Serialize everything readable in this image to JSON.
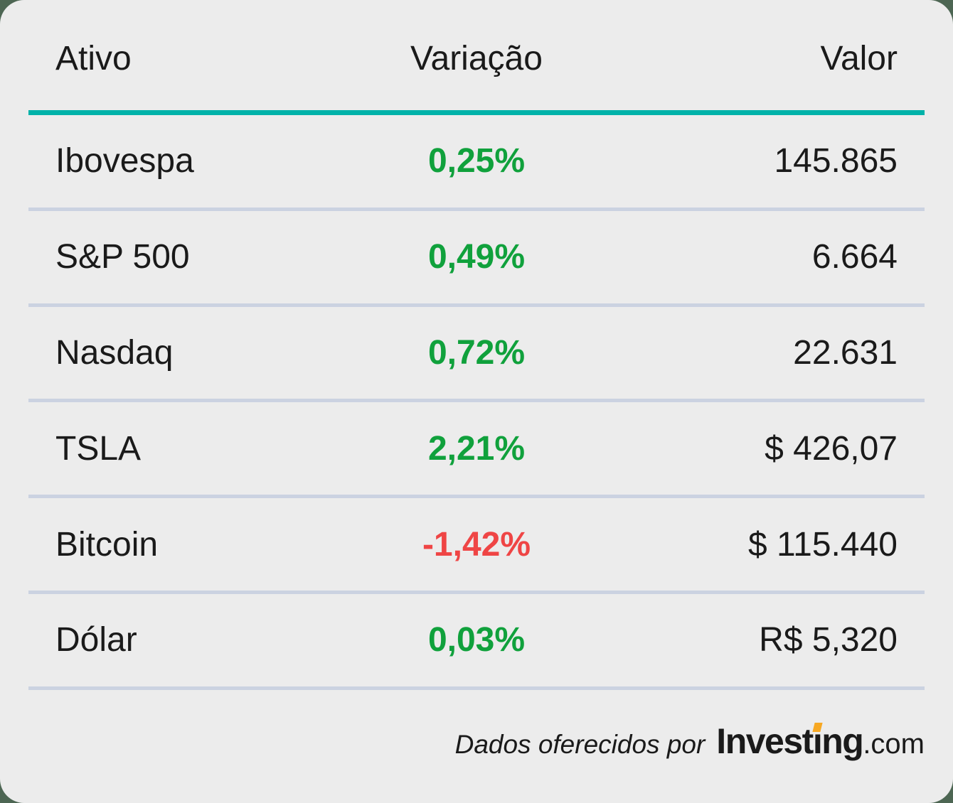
{
  "colors": {
    "page_bg": "#4d6653",
    "card_bg": "#ececec",
    "accent": "#00b2a9",
    "separator": "#cbd2e1",
    "text": "#1a1a1a",
    "positive": "#10a13c",
    "negative": "#ef4545",
    "logo_orange": "#f7a823"
  },
  "table": {
    "headers": {
      "ativo": "Ativo",
      "variacao": "Variação",
      "valor": "Valor"
    },
    "rows": [
      {
        "ativo": "Ibovespa",
        "variacao": "0,25%",
        "direction": "up",
        "valor": "145.865"
      },
      {
        "ativo": "S&P 500",
        "variacao": "0,49%",
        "direction": "up",
        "valor": "6.664"
      },
      {
        "ativo": "Nasdaq",
        "variacao": "0,72%",
        "direction": "up",
        "valor": "22.631"
      },
      {
        "ativo": "TSLA",
        "variacao": "2,21%",
        "direction": "up",
        "valor": "$ 426,07"
      },
      {
        "ativo": "Bitcoin",
        "variacao": "-1,42%",
        "direction": "down",
        "valor": "$ 115.440"
      },
      {
        "ativo": "Dólar",
        "variacao": "0,03%",
        "direction": "up",
        "valor": "R$ 5,320"
      }
    ]
  },
  "footer": {
    "attribution": "Dados oferecidos por",
    "logo": {
      "invest": "Invest",
      "i_dotless": "ı",
      "ng": "ng",
      "dotcom": ".com"
    }
  },
  "chart_data": {
    "type": "table",
    "columns": [
      "Ativo",
      "Variação",
      "Valor"
    ],
    "rows": [
      [
        "Ibovespa",
        "0,25%",
        "145.865"
      ],
      [
        "S&P 500",
        "0,49%",
        "6.664"
      ],
      [
        "Nasdaq",
        "0,72%",
        "22.631"
      ],
      [
        "TSLA",
        "2,21%",
        "$ 426,07"
      ],
      [
        "Bitcoin",
        "-1,42%",
        "$ 115.440"
      ],
      [
        "Dólar",
        "0,03%",
        "R$ 5,320"
      ]
    ],
    "variacao_numeric_percent": [
      0.25,
      0.49,
      0.72,
      2.21,
      -1.42,
      0.03
    ],
    "source": "Dados oferecidos por Investing.com"
  }
}
